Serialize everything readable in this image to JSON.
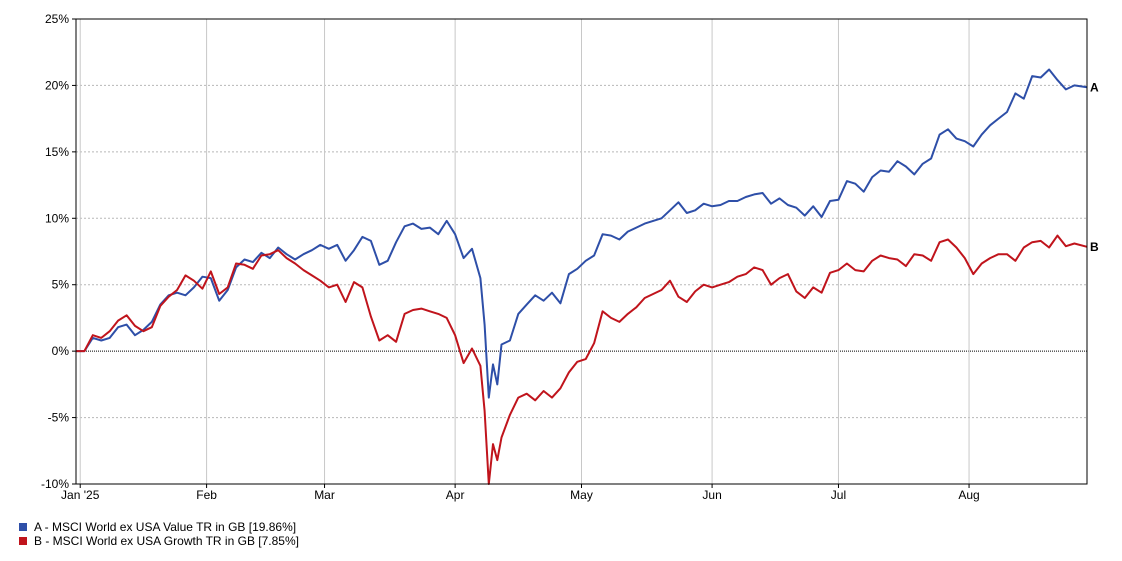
{
  "chart_data": {
    "type": "line",
    "xlabel": "",
    "ylabel": "",
    "x_range": [
      "2025-01-01",
      "2025-08-29"
    ],
    "ylim": [
      -10,
      25
    ],
    "y_ticks": [
      25,
      20,
      15,
      10,
      5,
      0,
      -5,
      -10
    ],
    "y_tick_labels": [
      "25%",
      "20%",
      "15%",
      "10%",
      "5%",
      "0%",
      "-5%",
      "-10%"
    ],
    "x_ticks": [
      {
        "date": "2025-01-02",
        "label": "Jan '25"
      },
      {
        "date": "2025-02-01",
        "label": "Feb"
      },
      {
        "date": "2025-03-01",
        "label": "Mar"
      },
      {
        "date": "2025-04-01",
        "label": "Apr"
      },
      {
        "date": "2025-05-01",
        "label": "May"
      },
      {
        "date": "2025-06-01",
        "label": "Jun"
      },
      {
        "date": "2025-07-01",
        "label": "Jul"
      },
      {
        "date": "2025-08-01",
        "label": "Aug"
      }
    ],
    "grid": true,
    "legend_position": "bottom-left",
    "series": [
      {
        "name": "A - MSCI World ex USA Value TR in GB [19.86%]",
        "end_label": "A",
        "color": "#2e4fa8",
        "points": [
          [
            "2025-01-01",
            0
          ],
          [
            "2025-01-03",
            0
          ],
          [
            "2025-01-05",
            1.0
          ],
          [
            "2025-01-07",
            0.8
          ],
          [
            "2025-01-09",
            1.0
          ],
          [
            "2025-01-11",
            1.8
          ],
          [
            "2025-01-13",
            2.0
          ],
          [
            "2025-01-15",
            1.2
          ],
          [
            "2025-01-17",
            1.6
          ],
          [
            "2025-01-19",
            2.2
          ],
          [
            "2025-01-21",
            3.5
          ],
          [
            "2025-01-23",
            4.2
          ],
          [
            "2025-01-25",
            4.4
          ],
          [
            "2025-01-27",
            4.2
          ],
          [
            "2025-01-29",
            4.8
          ],
          [
            "2025-01-31",
            5.6
          ],
          [
            "2025-02-02",
            5.5
          ],
          [
            "2025-02-04",
            3.8
          ],
          [
            "2025-02-06",
            4.6
          ],
          [
            "2025-02-08",
            6.3
          ],
          [
            "2025-02-10",
            6.9
          ],
          [
            "2025-02-12",
            6.7
          ],
          [
            "2025-02-14",
            7.4
          ],
          [
            "2025-02-16",
            7.0
          ],
          [
            "2025-02-18",
            7.8
          ],
          [
            "2025-02-20",
            7.3
          ],
          [
            "2025-02-22",
            6.9
          ],
          [
            "2025-02-24",
            7.3
          ],
          [
            "2025-02-26",
            7.6
          ],
          [
            "2025-02-28",
            8.0
          ],
          [
            "2025-03-02",
            7.7
          ],
          [
            "2025-03-04",
            8.0
          ],
          [
            "2025-03-06",
            6.8
          ],
          [
            "2025-03-08",
            7.6
          ],
          [
            "2025-03-10",
            8.6
          ],
          [
            "2025-03-12",
            8.3
          ],
          [
            "2025-03-14",
            6.5
          ],
          [
            "2025-03-16",
            6.8
          ],
          [
            "2025-03-18",
            8.2
          ],
          [
            "2025-03-20",
            9.4
          ],
          [
            "2025-03-22",
            9.6
          ],
          [
            "2025-03-24",
            9.2
          ],
          [
            "2025-03-26",
            9.3
          ],
          [
            "2025-03-28",
            8.8
          ],
          [
            "2025-03-30",
            9.8
          ],
          [
            "2025-04-01",
            8.8
          ],
          [
            "2025-04-03",
            7.0
          ],
          [
            "2025-04-05",
            7.7
          ],
          [
            "2025-04-07",
            5.5
          ],
          [
            "2025-04-08",
            2.0
          ],
          [
            "2025-04-09",
            -3.5
          ],
          [
            "2025-04-10",
            -1.0
          ],
          [
            "2025-04-11",
            -2.5
          ],
          [
            "2025-04-12",
            0.5
          ],
          [
            "2025-04-14",
            0.8
          ],
          [
            "2025-04-16",
            2.8
          ],
          [
            "2025-04-18",
            3.5
          ],
          [
            "2025-04-20",
            4.2
          ],
          [
            "2025-04-22",
            3.8
          ],
          [
            "2025-04-24",
            4.4
          ],
          [
            "2025-04-26",
            3.6
          ],
          [
            "2025-04-28",
            5.8
          ],
          [
            "2025-04-30",
            6.2
          ],
          [
            "2025-05-02",
            6.8
          ],
          [
            "2025-05-04",
            7.2
          ],
          [
            "2025-05-06",
            8.8
          ],
          [
            "2025-05-08",
            8.7
          ],
          [
            "2025-05-10",
            8.4
          ],
          [
            "2025-05-12",
            9.0
          ],
          [
            "2025-05-14",
            9.3
          ],
          [
            "2025-05-16",
            9.6
          ],
          [
            "2025-05-18",
            9.8
          ],
          [
            "2025-05-20",
            10.0
          ],
          [
            "2025-05-22",
            10.6
          ],
          [
            "2025-05-24",
            11.2
          ],
          [
            "2025-05-26",
            10.4
          ],
          [
            "2025-05-28",
            10.6
          ],
          [
            "2025-05-30",
            11.1
          ],
          [
            "2025-06-01",
            10.9
          ],
          [
            "2025-06-03",
            11.0
          ],
          [
            "2025-06-05",
            11.3
          ],
          [
            "2025-06-07",
            11.3
          ],
          [
            "2025-06-09",
            11.6
          ],
          [
            "2025-06-11",
            11.8
          ],
          [
            "2025-06-13",
            11.9
          ],
          [
            "2025-06-15",
            11.1
          ],
          [
            "2025-06-17",
            11.5
          ],
          [
            "2025-06-19",
            11.0
          ],
          [
            "2025-06-21",
            10.8
          ],
          [
            "2025-06-23",
            10.2
          ],
          [
            "2025-06-25",
            10.9
          ],
          [
            "2025-06-27",
            10.1
          ],
          [
            "2025-06-29",
            11.3
          ],
          [
            "2025-07-01",
            11.4
          ],
          [
            "2025-07-03",
            12.8
          ],
          [
            "2025-07-05",
            12.6
          ],
          [
            "2025-07-07",
            12.0
          ],
          [
            "2025-07-09",
            13.1
          ],
          [
            "2025-07-11",
            13.6
          ],
          [
            "2025-07-13",
            13.5
          ],
          [
            "2025-07-15",
            14.3
          ],
          [
            "2025-07-17",
            13.9
          ],
          [
            "2025-07-19",
            13.3
          ],
          [
            "2025-07-21",
            14.1
          ],
          [
            "2025-07-23",
            14.5
          ],
          [
            "2025-07-25",
            16.3
          ],
          [
            "2025-07-27",
            16.7
          ],
          [
            "2025-07-29",
            16.0
          ],
          [
            "2025-07-31",
            15.8
          ],
          [
            "2025-08-02",
            15.4
          ],
          [
            "2025-08-04",
            16.3
          ],
          [
            "2025-08-06",
            17.0
          ],
          [
            "2025-08-08",
            17.5
          ],
          [
            "2025-08-10",
            18.0
          ],
          [
            "2025-08-12",
            19.4
          ],
          [
            "2025-08-14",
            19.0
          ],
          [
            "2025-08-16",
            20.7
          ],
          [
            "2025-08-18",
            20.6
          ],
          [
            "2025-08-20",
            21.2
          ],
          [
            "2025-08-22",
            20.4
          ],
          [
            "2025-08-24",
            19.7
          ],
          [
            "2025-08-26",
            20.0
          ],
          [
            "2025-08-29",
            19.86
          ]
        ]
      },
      {
        "name": "B - MSCI World ex USA Growth TR in GB [7.85%]",
        "end_label": "B",
        "color": "#c0141c",
        "points": [
          [
            "2025-01-01",
            0
          ],
          [
            "2025-01-03",
            0
          ],
          [
            "2025-01-05",
            1.2
          ],
          [
            "2025-01-07",
            1.0
          ],
          [
            "2025-01-09",
            1.5
          ],
          [
            "2025-01-11",
            2.3
          ],
          [
            "2025-01-13",
            2.7
          ],
          [
            "2025-01-15",
            1.9
          ],
          [
            "2025-01-17",
            1.5
          ],
          [
            "2025-01-19",
            1.8
          ],
          [
            "2025-01-21",
            3.4
          ],
          [
            "2025-01-23",
            4.1
          ],
          [
            "2025-01-25",
            4.6
          ],
          [
            "2025-01-27",
            5.7
          ],
          [
            "2025-01-29",
            5.3
          ],
          [
            "2025-01-31",
            4.7
          ],
          [
            "2025-02-02",
            6.0
          ],
          [
            "2025-02-04",
            4.3
          ],
          [
            "2025-02-06",
            4.8
          ],
          [
            "2025-02-08",
            6.6
          ],
          [
            "2025-02-10",
            6.5
          ],
          [
            "2025-02-12",
            6.2
          ],
          [
            "2025-02-14",
            7.2
          ],
          [
            "2025-02-16",
            7.3
          ],
          [
            "2025-02-18",
            7.6
          ],
          [
            "2025-02-20",
            7.0
          ],
          [
            "2025-02-22",
            6.6
          ],
          [
            "2025-02-24",
            6.1
          ],
          [
            "2025-02-26",
            5.7
          ],
          [
            "2025-02-28",
            5.3
          ],
          [
            "2025-03-02",
            4.8
          ],
          [
            "2025-03-04",
            5.0
          ],
          [
            "2025-03-06",
            3.7
          ],
          [
            "2025-03-08",
            5.2
          ],
          [
            "2025-03-10",
            4.8
          ],
          [
            "2025-03-12",
            2.6
          ],
          [
            "2025-03-14",
            0.8
          ],
          [
            "2025-03-16",
            1.2
          ],
          [
            "2025-03-18",
            0.7
          ],
          [
            "2025-03-20",
            2.8
          ],
          [
            "2025-03-22",
            3.1
          ],
          [
            "2025-03-24",
            3.2
          ],
          [
            "2025-03-26",
            3.0
          ],
          [
            "2025-03-28",
            2.8
          ],
          [
            "2025-03-30",
            2.5
          ],
          [
            "2025-04-01",
            1.2
          ],
          [
            "2025-04-03",
            -0.9
          ],
          [
            "2025-04-05",
            0.2
          ],
          [
            "2025-04-07",
            -1.1
          ],
          [
            "2025-04-08",
            -4.5
          ],
          [
            "2025-04-09",
            -10.0
          ],
          [
            "2025-04-10",
            -7.0
          ],
          [
            "2025-04-11",
            -8.2
          ],
          [
            "2025-04-12",
            -6.5
          ],
          [
            "2025-04-14",
            -4.8
          ],
          [
            "2025-04-16",
            -3.5
          ],
          [
            "2025-04-18",
            -3.2
          ],
          [
            "2025-04-20",
            -3.7
          ],
          [
            "2025-04-22",
            -3.0
          ],
          [
            "2025-04-24",
            -3.5
          ],
          [
            "2025-04-26",
            -2.8
          ],
          [
            "2025-04-28",
            -1.6
          ],
          [
            "2025-04-30",
            -0.8
          ],
          [
            "2025-05-02",
            -0.6
          ],
          [
            "2025-05-04",
            0.6
          ],
          [
            "2025-05-06",
            3.0
          ],
          [
            "2025-05-08",
            2.5
          ],
          [
            "2025-05-10",
            2.2
          ],
          [
            "2025-05-12",
            2.8
          ],
          [
            "2025-05-14",
            3.3
          ],
          [
            "2025-05-16",
            4.0
          ],
          [
            "2025-05-18",
            4.3
          ],
          [
            "2025-05-20",
            4.6
          ],
          [
            "2025-05-22",
            5.3
          ],
          [
            "2025-05-24",
            4.1
          ],
          [
            "2025-05-26",
            3.7
          ],
          [
            "2025-05-28",
            4.5
          ],
          [
            "2025-05-30",
            5.0
          ],
          [
            "2025-06-01",
            4.8
          ],
          [
            "2025-06-03",
            5.0
          ],
          [
            "2025-06-05",
            5.2
          ],
          [
            "2025-06-07",
            5.6
          ],
          [
            "2025-06-09",
            5.8
          ],
          [
            "2025-06-11",
            6.3
          ],
          [
            "2025-06-13",
            6.1
          ],
          [
            "2025-06-15",
            5.0
          ],
          [
            "2025-06-17",
            5.5
          ],
          [
            "2025-06-19",
            5.8
          ],
          [
            "2025-06-21",
            4.5
          ],
          [
            "2025-06-23",
            4.0
          ],
          [
            "2025-06-25",
            4.8
          ],
          [
            "2025-06-27",
            4.4
          ],
          [
            "2025-06-29",
            5.9
          ],
          [
            "2025-07-01",
            6.1
          ],
          [
            "2025-07-03",
            6.6
          ],
          [
            "2025-07-05",
            6.1
          ],
          [
            "2025-07-07",
            6.0
          ],
          [
            "2025-07-09",
            6.8
          ],
          [
            "2025-07-11",
            7.2
          ],
          [
            "2025-07-13",
            7.0
          ],
          [
            "2025-07-15",
            6.9
          ],
          [
            "2025-07-17",
            6.4
          ],
          [
            "2025-07-19",
            7.3
          ],
          [
            "2025-07-21",
            7.2
          ],
          [
            "2025-07-23",
            6.8
          ],
          [
            "2025-07-25",
            8.2
          ],
          [
            "2025-07-27",
            8.4
          ],
          [
            "2025-07-29",
            7.8
          ],
          [
            "2025-07-31",
            7.0
          ],
          [
            "2025-08-02",
            5.8
          ],
          [
            "2025-08-04",
            6.6
          ],
          [
            "2025-08-06",
            7.0
          ],
          [
            "2025-08-08",
            7.3
          ],
          [
            "2025-08-10",
            7.3
          ],
          [
            "2025-08-12",
            6.8
          ],
          [
            "2025-08-14",
            7.8
          ],
          [
            "2025-08-16",
            8.2
          ],
          [
            "2025-08-18",
            8.3
          ],
          [
            "2025-08-20",
            7.8
          ],
          [
            "2025-08-22",
            8.7
          ],
          [
            "2025-08-24",
            7.9
          ],
          [
            "2025-08-26",
            8.1
          ],
          [
            "2025-08-29",
            7.85
          ]
        ]
      }
    ]
  }
}
